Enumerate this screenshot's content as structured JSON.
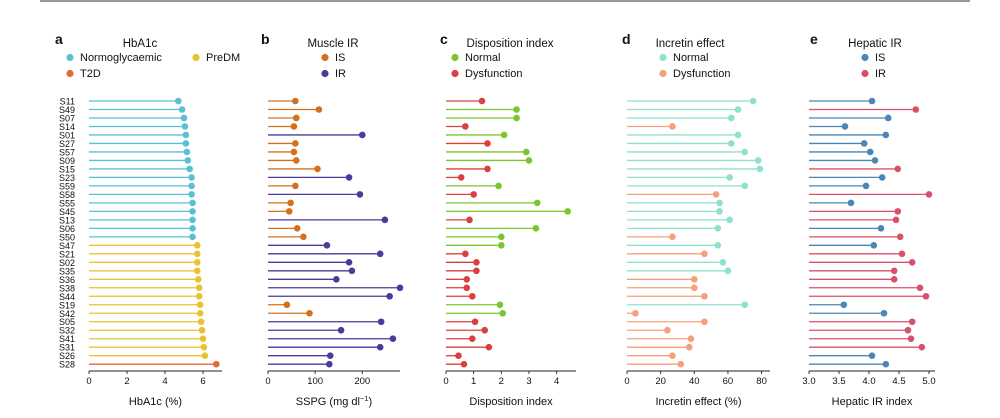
{
  "subjects": [
    "S11",
    "S49",
    "S07",
    "S14",
    "S01",
    "S27",
    "S57",
    "S09",
    "S15",
    "S23",
    "S59",
    "S58",
    "S55",
    "S45",
    "S13",
    "S06",
    "S50",
    "S47",
    "S21",
    "S02",
    "S35",
    "S36",
    "S38",
    "S44",
    "S19",
    "S42",
    "S05",
    "S32",
    "S41",
    "S31",
    "S26",
    "S28"
  ],
  "chart_data": [
    {
      "panel": "a",
      "type": "lollipop",
      "title": "HbA1c",
      "xlabel": "HbA1c (%)",
      "xlim": [
        0,
        7
      ],
      "xticks": [
        0,
        2,
        4,
        6
      ],
      "legend": [
        {
          "label": "Normoglycaemic",
          "color": "#5bc0d4"
        },
        {
          "label": "PreDM",
          "color": "#e9c232"
        },
        {
          "label": "T2D",
          "color": "#e06a3a"
        }
      ],
      "values": [
        4.7,
        4.9,
        5.0,
        5.05,
        5.1,
        5.1,
        5.15,
        5.2,
        5.3,
        5.4,
        5.4,
        5.4,
        5.45,
        5.45,
        5.45,
        5.45,
        5.45,
        5.7,
        5.7,
        5.7,
        5.7,
        5.75,
        5.8,
        5.8,
        5.85,
        5.85,
        5.9,
        5.95,
        6.0,
        6.05,
        6.1,
        6.7
      ],
      "groups": [
        0,
        0,
        0,
        0,
        0,
        0,
        0,
        0,
        0,
        0,
        0,
        0,
        0,
        0,
        0,
        0,
        0,
        1,
        1,
        1,
        1,
        1,
        1,
        1,
        1,
        1,
        1,
        1,
        1,
        1,
        1,
        2
      ]
    },
    {
      "panel": "b",
      "type": "lollipop",
      "title": "Muscle IR",
      "xlabel": "SSPG (mg dl",
      "xlabel_sup": "−1",
      "xlabel_end": ")",
      "xlim": [
        0,
        280
      ],
      "xticks": [
        0,
        100,
        200
      ],
      "legend": [
        {
          "label": "IS",
          "color": "#d4701d"
        },
        {
          "label": "IR",
          "color": "#4a3a9a"
        }
      ],
      "values": [
        58,
        108,
        60,
        55,
        200,
        58,
        55,
        60,
        105,
        172,
        58,
        195,
        48,
        45,
        248,
        62,
        75,
        125,
        238,
        172,
        178,
        145,
        280,
        258,
        40,
        88,
        240,
        155,
        265,
        238,
        132,
        130
      ],
      "groups": [
        0,
        0,
        0,
        0,
        1,
        0,
        0,
        0,
        0,
        1,
        0,
        1,
        0,
        0,
        1,
        0,
        0,
        1,
        1,
        1,
        1,
        1,
        1,
        1,
        0,
        0,
        1,
        1,
        1,
        1,
        1,
        1
      ]
    },
    {
      "panel": "c",
      "type": "lollipop",
      "title": "Disposition index",
      "xlabel": "Disposition index",
      "xlim": [
        0,
        4.7
      ],
      "xticks": [
        0,
        1,
        2,
        3,
        4
      ],
      "legend": [
        {
          "label": "Normal",
          "color": "#7bc62f"
        },
        {
          "label": "Dysfunction",
          "color": "#d94040"
        }
      ],
      "values": [
        1.3,
        2.55,
        2.55,
        0.7,
        2.1,
        1.5,
        2.9,
        3.0,
        1.5,
        0.55,
        1.9,
        1.0,
        3.3,
        4.4,
        0.85,
        3.25,
        2.0,
        2.0,
        0.7,
        1.1,
        1.1,
        0.75,
        0.75,
        0.95,
        1.95,
        2.05,
        1.05,
        1.4,
        0.95,
        1.55,
        0.45,
        0.65
      ],
      "groups": [
        1,
        0,
        0,
        1,
        0,
        1,
        0,
        0,
        1,
        1,
        0,
        1,
        0,
        0,
        1,
        0,
        0,
        0,
        1,
        1,
        1,
        1,
        1,
        1,
        0,
        0,
        1,
        1,
        1,
        1,
        1,
        1
      ]
    },
    {
      "panel": "d",
      "type": "lollipop",
      "title": "Incretin effect",
      "xlabel": "Incretin effect (%)",
      "xlim": [
        0,
        85
      ],
      "xticks": [
        0,
        20,
        40,
        60,
        80
      ],
      "legend": [
        {
          "label": "Normal",
          "color": "#8fe0cf"
        },
        {
          "label": "Dysfunction",
          "color": "#f4a07a"
        }
      ],
      "values": [
        75,
        66,
        62,
        27,
        66,
        62,
        70,
        78,
        79,
        61,
        70,
        53,
        55,
        55,
        61,
        54,
        27,
        54,
        46,
        57,
        60,
        40,
        40,
        46,
        70,
        5,
        46,
        24,
        38,
        37,
        27,
        32
      ],
      "groups": [
        0,
        0,
        0,
        1,
        0,
        0,
        0,
        0,
        0,
        0,
        0,
        1,
        0,
        0,
        0,
        0,
        1,
        0,
        1,
        0,
        0,
        1,
        1,
        1,
        0,
        1,
        1,
        1,
        1,
        1,
        1,
        1
      ]
    },
    {
      "panel": "e",
      "type": "lollipop",
      "title": "Hepatic IR",
      "xlabel": "Hepatic IR index",
      "xlim": [
        3.0,
        5.1
      ],
      "xticks": [
        3.0,
        3.5,
        4.0,
        4.5,
        5.0
      ],
      "legend": [
        {
          "label": "IS",
          "color": "#4a86b8"
        },
        {
          "label": "IR",
          "color": "#d9506a"
        }
      ],
      "values": [
        4.05,
        4.78,
        4.32,
        3.6,
        4.28,
        3.92,
        4.02,
        4.1,
        4.48,
        4.22,
        3.95,
        5.0,
        3.7,
        4.48,
        4.45,
        4.2,
        4.52,
        4.08,
        4.55,
        4.72,
        4.42,
        4.42,
        4.85,
        4.95,
        3.58,
        4.25,
        4.72,
        4.65,
        4.7,
        4.88,
        4.05,
        4.28
      ],
      "groups": [
        0,
        1,
        0,
        0,
        0,
        0,
        0,
        0,
        1,
        0,
        0,
        1,
        0,
        1,
        1,
        0,
        1,
        0,
        1,
        1,
        1,
        1,
        1,
        1,
        0,
        0,
        1,
        1,
        1,
        1,
        0,
        0
      ]
    }
  ]
}
